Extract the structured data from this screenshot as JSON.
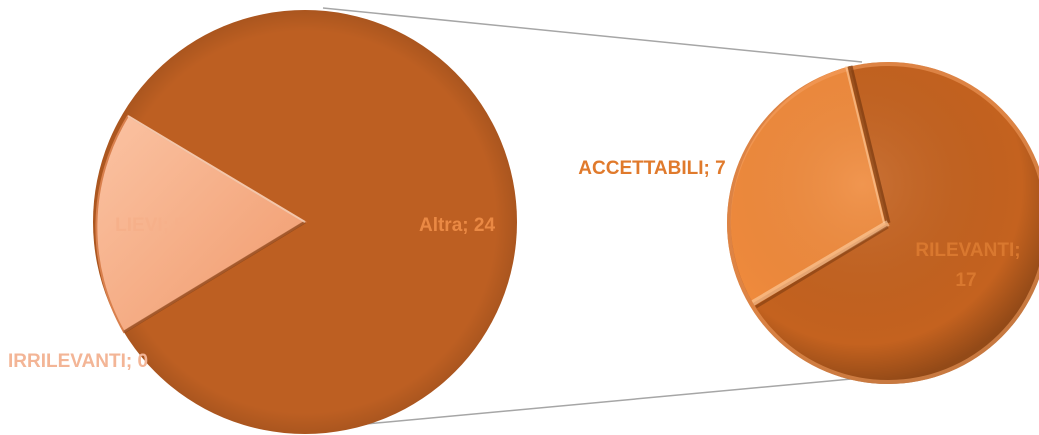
{
  "chart_data": {
    "type": "pie-of-pie",
    "title": "",
    "primary_pie": {
      "slices": [
        {
          "label": "IRRILEVANTI",
          "value": 0,
          "text": "IRRILEVANTI; 0",
          "color": "#f3b596"
        },
        {
          "label": "LIEVI",
          "value": 5,
          "text": "LIEVI; 5",
          "color": "#f7a77d"
        },
        {
          "label": "Altra",
          "value": 24,
          "text": "Altra; 24",
          "color": "#ea8944"
        }
      ]
    },
    "secondary_pie": {
      "slices": [
        {
          "label": "ACCETTABILI",
          "value": 7,
          "text": "ACCETTABILI; 7",
          "color": "#e07a2c"
        },
        {
          "label": "RILEVANTI",
          "value": 17,
          "text": [
            "RILEVANTI;",
            "17"
          ],
          "color": "#c9682a"
        }
      ]
    },
    "colors": {
      "main_fill": "#bd5f22",
      "lievi_fill": "#f7a77d",
      "accettabili_fill": "#ef8a3c",
      "rilevanti_fill": "#c4621f",
      "connector": "#a6a6a6"
    }
  }
}
